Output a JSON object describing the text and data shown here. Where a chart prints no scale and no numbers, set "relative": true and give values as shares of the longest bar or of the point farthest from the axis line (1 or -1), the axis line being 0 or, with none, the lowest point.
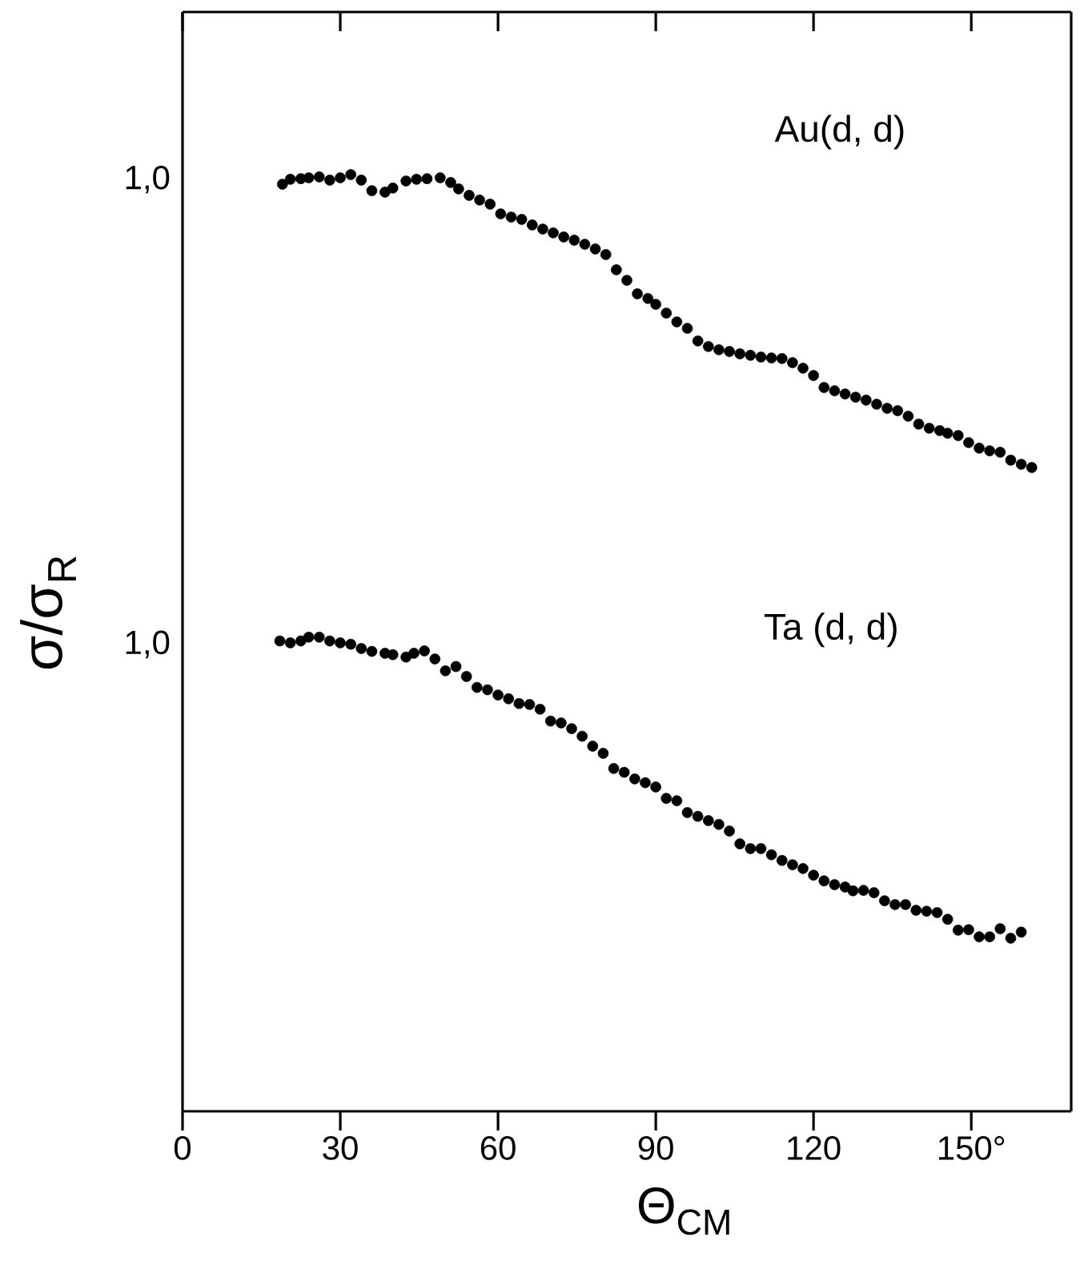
{
  "chart_data": [
    {
      "type": "scatter",
      "ylabel": "σ/σ$_{R}$",
      "relative": true,
      "marker": "circle",
      "tick_labels": false,
      "xlim": [
        0,
        169
      ],
      "annotations": [
        "1,0"
      ],
      "xticks": [
        0,
        30,
        60,
        90,
        120,
        150
      ],
      "series": [
        {
          "name": "Au(d, d)",
          "color": "#000000",
          "x": [
            19,
            20.5,
            22.5,
            24,
            26,
            28,
            30,
            32,
            34,
            36,
            38.5,
            40,
            42.5,
            44.5,
            46.5,
            49,
            51,
            52.5,
            54.5,
            56.5,
            58.5,
            60.5,
            62.5,
            64.5,
            66.5,
            68.5,
            70.5,
            72.5,
            74.5,
            76.5,
            78.5,
            80.5,
            82.5,
            84.5,
            86.5,
            88.5,
            90,
            92,
            94,
            96,
            98,
            100,
            102,
            104,
            106,
            108,
            110,
            112,
            114,
            116,
            118,
            120,
            122,
            124,
            126,
            128,
            130,
            132,
            134,
            136,
            138,
            140,
            142,
            144,
            145.5,
            147.5,
            149.5,
            151.5,
            153.5,
            155.5,
            157.5,
            159.5,
            161.5
          ],
          "values": [
            0.967,
            0.984,
            0.986,
            0.989,
            0.992,
            0.981,
            0.989,
            1,
            0.981,
            0.945,
            0.94,
            0.954,
            0.978,
            0.984,
            0.986,
            0.989,
            0.973,
            0.951,
            0.929,
            0.913,
            0.899,
            0.866,
            0.855,
            0.847,
            0.828,
            0.814,
            0.801,
            0.787,
            0.776,
            0.762,
            0.746,
            0.727,
            0.675,
            0.639,
            0.593,
            0.577,
            0.557,
            0.527,
            0.497,
            0.475,
            0.432,
            0.413,
            0.402,
            0.396,
            0.388,
            0.383,
            0.377,
            0.374,
            0.372,
            0.358,
            0.339,
            0.314,
            0.273,
            0.262,
            0.251,
            0.24,
            0.23,
            0.216,
            0.202,
            0.194,
            0.175,
            0.148,
            0.134,
            0.126,
            0.117,
            0.109,
            0.085,
            0.066,
            0.057,
            0.052,
            0.025,
            0.011,
            0
          ]
        }
      ]
    },
    {
      "type": "scatter",
      "xlabel": "Θ$_{CM}$",
      "relative": true,
      "marker": "circle",
      "tick_labels": "x",
      "xlim": [
        0,
        169
      ],
      "annotations": [
        "1,0"
      ],
      "xticks": [
        0,
        30,
        60,
        90,
        120,
        {
          "value": 150,
          "label": "150°"
        }
      ],
      "series": [
        {
          "name": "Ta (d, d)",
          "color": "#000000",
          "x": [
            18.5,
            20.5,
            22.5,
            24,
            26,
            28,
            30,
            32,
            34,
            36,
            38.5,
            40,
            42.5,
            44,
            46,
            48,
            50,
            52,
            54,
            56,
            58,
            60,
            62,
            64,
            66,
            68,
            70,
            72,
            74,
            76,
            78,
            80,
            82,
            84,
            86,
            88,
            90,
            92,
            94,
            96,
            98,
            100,
            102,
            104,
            106,
            108,
            110,
            112,
            114,
            116,
            118,
            120,
            122,
            124,
            126,
            127.5,
            129.5,
            131.5,
            133.5,
            135.5,
            137.5,
            139.5,
            141.5,
            143.5,
            145.5,
            147.5,
            149.5,
            151.5,
            153.5,
            155.5,
            157.5,
            159.5
          ],
          "values": [
            0.992,
            0.988,
            0.992,
            1,
            1,
            0.992,
            0.988,
            0.985,
            0.976,
            0.97,
            0.966,
            0.963,
            0.958,
            0.966,
            0.971,
            0.954,
            0.929,
            0.938,
            0.917,
            0.894,
            0.889,
            0.878,
            0.87,
            0.86,
            0.858,
            0.848,
            0.823,
            0.819,
            0.807,
            0.791,
            0.77,
            0.755,
            0.723,
            0.715,
            0.701,
            0.693,
            0.684,
            0.66,
            0.655,
            0.63,
            0.622,
            0.613,
            0.605,
            0.591,
            0.564,
            0.554,
            0.554,
            0.541,
            0.529,
            0.52,
            0.512,
            0.498,
            0.486,
            0.478,
            0.473,
            0.465,
            0.466,
            0.461,
            0.444,
            0.436,
            0.436,
            0.424,
            0.422,
            0.419,
            0.405,
            0.382,
            0.383,
            0.368,
            0.368,
            0.385,
            0.365,
            0.378
          ]
        }
      ]
    }
  ]
}
